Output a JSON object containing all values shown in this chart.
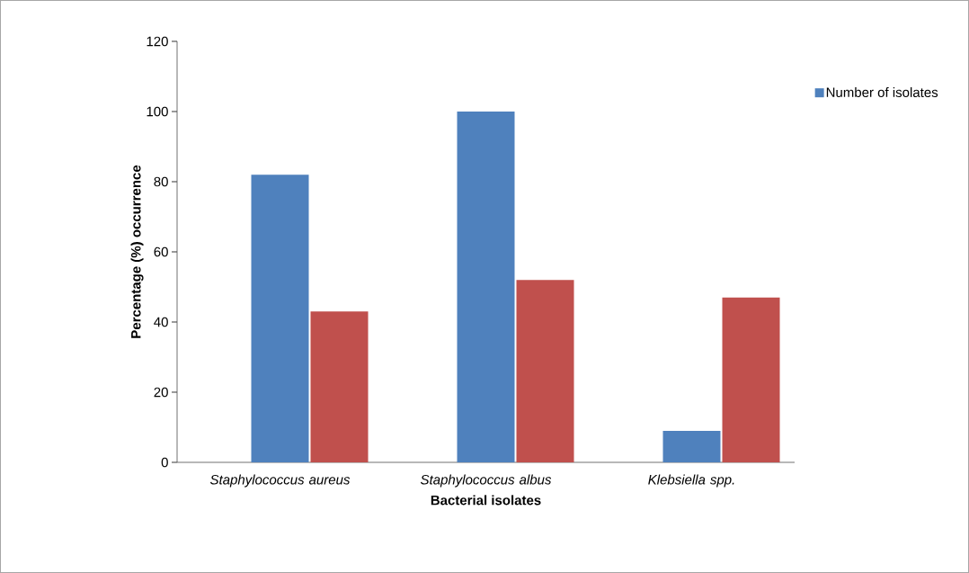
{
  "chart_data": {
    "type": "bar",
    "xlabel": "Bacterial isolates",
    "ylabel": "Percentage (%) occurrence",
    "categories": [
      "Staphylococcus aureus",
      "Staphylococcus albus",
      "Klebsiella spp."
    ],
    "series": [
      {
        "name": "Number of isolates",
        "color": "#4f81bd",
        "values": [
          82,
          100,
          9
        ]
      },
      {
        "color": "#c0504d",
        "values": [
          43,
          52,
          47
        ]
      }
    ],
    "ylim": [
      0,
      120
    ],
    "yticks": [
      0,
      20,
      40,
      60,
      80,
      100,
      120
    ],
    "grid": false,
    "legend": "top right"
  }
}
